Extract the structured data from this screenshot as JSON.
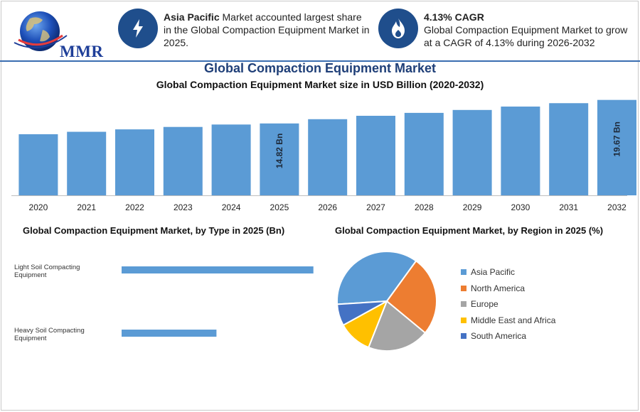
{
  "header": {
    "logo_text": "MMR",
    "info1": {
      "bold": "Asia Pacific",
      "rest": " Market accounted largest share in the Global Compaction Equipment Market in 2025."
    },
    "info2": {
      "bold": "4.13% CAGR",
      "rest": "Global Compaction Equipment Market to grow at a CAGR of 4.13% during 2026-2032"
    }
  },
  "title": "Global Compaction Equipment Market",
  "subtitle": "Global Compaction Equipment Market size in USD Billion (2020-2032)",
  "type_title": "Global Compaction Equipment Market, by Type in 2025 (Bn)",
  "region_title": "Global Compaction Equipment Market, by Region in 2025 (%)",
  "colors": {
    "bar": "#5b9bd5",
    "accent": "#1f4e8c"
  },
  "icons": {
    "info1": "lightning-icon",
    "info2": "flame-icon"
  },
  "chart_data": [
    {
      "type": "bar",
      "categories": [
        "2020",
        "2021",
        "2022",
        "2023",
        "2024",
        "2025",
        "2026",
        "2027",
        "2028",
        "2029",
        "2030",
        "2031",
        "2032"
      ],
      "values": [
        12.6,
        13.1,
        13.6,
        14.1,
        14.6,
        14.82,
        15.7,
        16.4,
        17.0,
        17.6,
        18.3,
        19.0,
        19.67
      ],
      "data_labels": {
        "2025": "14.82 Bn",
        "2032": "19.67 Bn"
      },
      "ylim": [
        0,
        20.5
      ],
      "grid": false
    },
    {
      "type": "bar",
      "orientation": "horizontal",
      "categories": [
        "Light Soil Compacting Equipment",
        "Heavy Soil Compacting Equipment"
      ],
      "values": [
        9.3,
        4.6
      ],
      "xlim": [
        0,
        10
      ]
    },
    {
      "type": "pie",
      "labels": [
        "Asia Pacific",
        "North America",
        "Europe",
        "Middle East and Africa",
        "South America"
      ],
      "values": [
        36,
        26,
        20,
        11,
        7
      ],
      "colors": [
        "#5b9bd5",
        "#ed7d31",
        "#a5a5a5",
        "#ffc000",
        "#4472c4"
      ],
      "legend": "right"
    }
  ]
}
